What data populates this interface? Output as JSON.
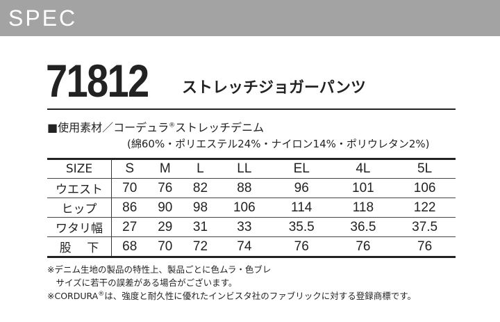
{
  "header": {
    "label": "SPEC"
  },
  "product": {
    "number": "71812",
    "name": "ストレッチジョガーパンツ"
  },
  "material": {
    "line1_prefix": "■使用素材／コーデュラ",
    "registered": "®",
    "line1_suffix": "ストレッチデニム",
    "line2": "(綿60%・ポリエステル24%・ナイロン14%・ポリウレタン2%)"
  },
  "table": {
    "headers": [
      "SIZE",
      "S",
      "M",
      "L",
      "LL",
      "EL",
      "4L",
      "5L"
    ],
    "rows": [
      {
        "label": "ウエスト",
        "values": [
          "70",
          "76",
          "82",
          "88",
          "96",
          "101",
          "106"
        ]
      },
      {
        "label": "ヒップ",
        "values": [
          "86",
          "90",
          "98",
          "106",
          "114",
          "118",
          "122"
        ]
      },
      {
        "label": "ワタリ幅",
        "values": [
          "27",
          "29",
          "31",
          "33",
          "35.5",
          "36.5",
          "37.5"
        ]
      },
      {
        "label": "股　 下",
        "values": [
          "68",
          "70",
          "72",
          "74",
          "76",
          "76",
          "76"
        ]
      }
    ]
  },
  "notes": {
    "line1": "※デニム生地の製品の特性上、製品ごとに色ムラ・色ブレ",
    "line2": "　サイズに若干の誤差がある場合がございます。",
    "line3_prefix": "※CORDURA",
    "line3_reg": "®",
    "line3_suffix": "は、強度と耐久性に優れたインビスタ社のファブリックに対する登録商標です。"
  }
}
